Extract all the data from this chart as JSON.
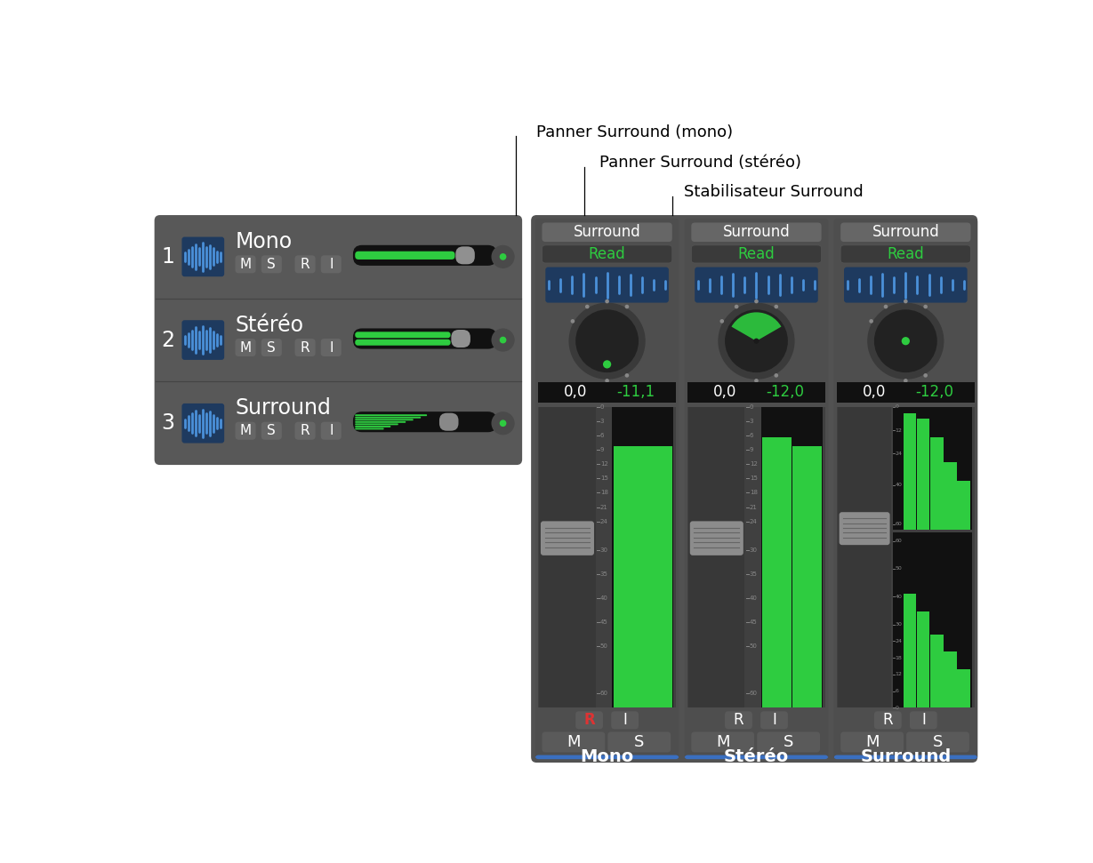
{
  "bg_color": "#ffffff",
  "panel_bg": "#585858",
  "green": "#2ecc40",
  "blue_icon_bg": "#1e3a5f",
  "blue_bar_color": "#4a90d9",
  "label_white": "#ffffff",
  "label_green": "#2ecc40",
  "red_r": "#dd3333",
  "blue_label": "#3a6fc0",
  "annotation1": "Panner Surround (mono)",
  "annotation2": "Panner Surround (stéréo)",
  "annotation3": "Stabilisateur Surround",
  "track_labels": [
    "Mono",
    "Stéréo",
    "Surround"
  ],
  "channel_labels": [
    "Mono",
    "Stéréo",
    "Surround"
  ],
  "row_numbers": [
    "1",
    "2",
    "3"
  ],
  "values_white": [
    "0,0",
    "0,0",
    "0,0"
  ],
  "values_green": [
    "-11,1",
    "-12,0",
    "-12,0"
  ]
}
